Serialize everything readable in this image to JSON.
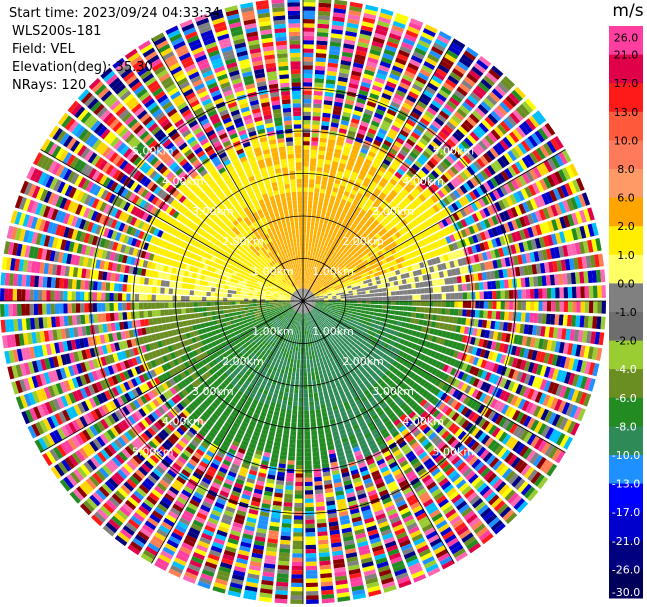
{
  "header": {
    "start_time": "Start time: 2023/09/24 04:33:34",
    "instrument": "WLS200s-181",
    "field": "Field: VEL",
    "elevation": "Elevation(deg): 35.30",
    "nrays": "NRays: 120"
  },
  "chart_data": {
    "type": "heatmap",
    "projection": "polar-ppi",
    "field": "VEL",
    "unit": "m/s",
    "n_rays": 120,
    "range_rings_km": [
      1.0,
      2.0,
      3.0,
      4.0,
      5.0
    ],
    "range_ring_labels": [
      "1.00km",
      "2.00km",
      "3.00km",
      "4.00km",
      "5.00km"
    ],
    "colorbar": {
      "title": "m/s",
      "ticks": [
        "26.0",
        "21.0",
        "17.0",
        "13.0",
        "10.0",
        "8.0",
        "6.0",
        "2.0",
        "1.0",
        "0.0",
        "-1.0",
        "-2.0",
        "-4.0",
        "-6.0",
        "-8.0",
        "-10.0",
        "-13.0",
        "-17.0",
        "-21.0",
        "-26.0",
        "-30.0"
      ],
      "colors": [
        "#ff3fa0",
        "#e0004a",
        "#ff1a1a",
        "#ff5a3c",
        "#ff7a5a",
        "#ff9966",
        "#ffa500",
        "#ffee00",
        "#ffff66",
        "#808080",
        "#6e6e6e",
        "#9acd32",
        "#6b8e23",
        "#228b22",
        "#2e8b57",
        "#1e90ff",
        "#0000ff",
        "#0000cd",
        "#000080",
        "#00005a"
      ]
    }
  },
  "colors": {
    "grid": "#000000",
    "ring_label": "#ffffff"
  }
}
